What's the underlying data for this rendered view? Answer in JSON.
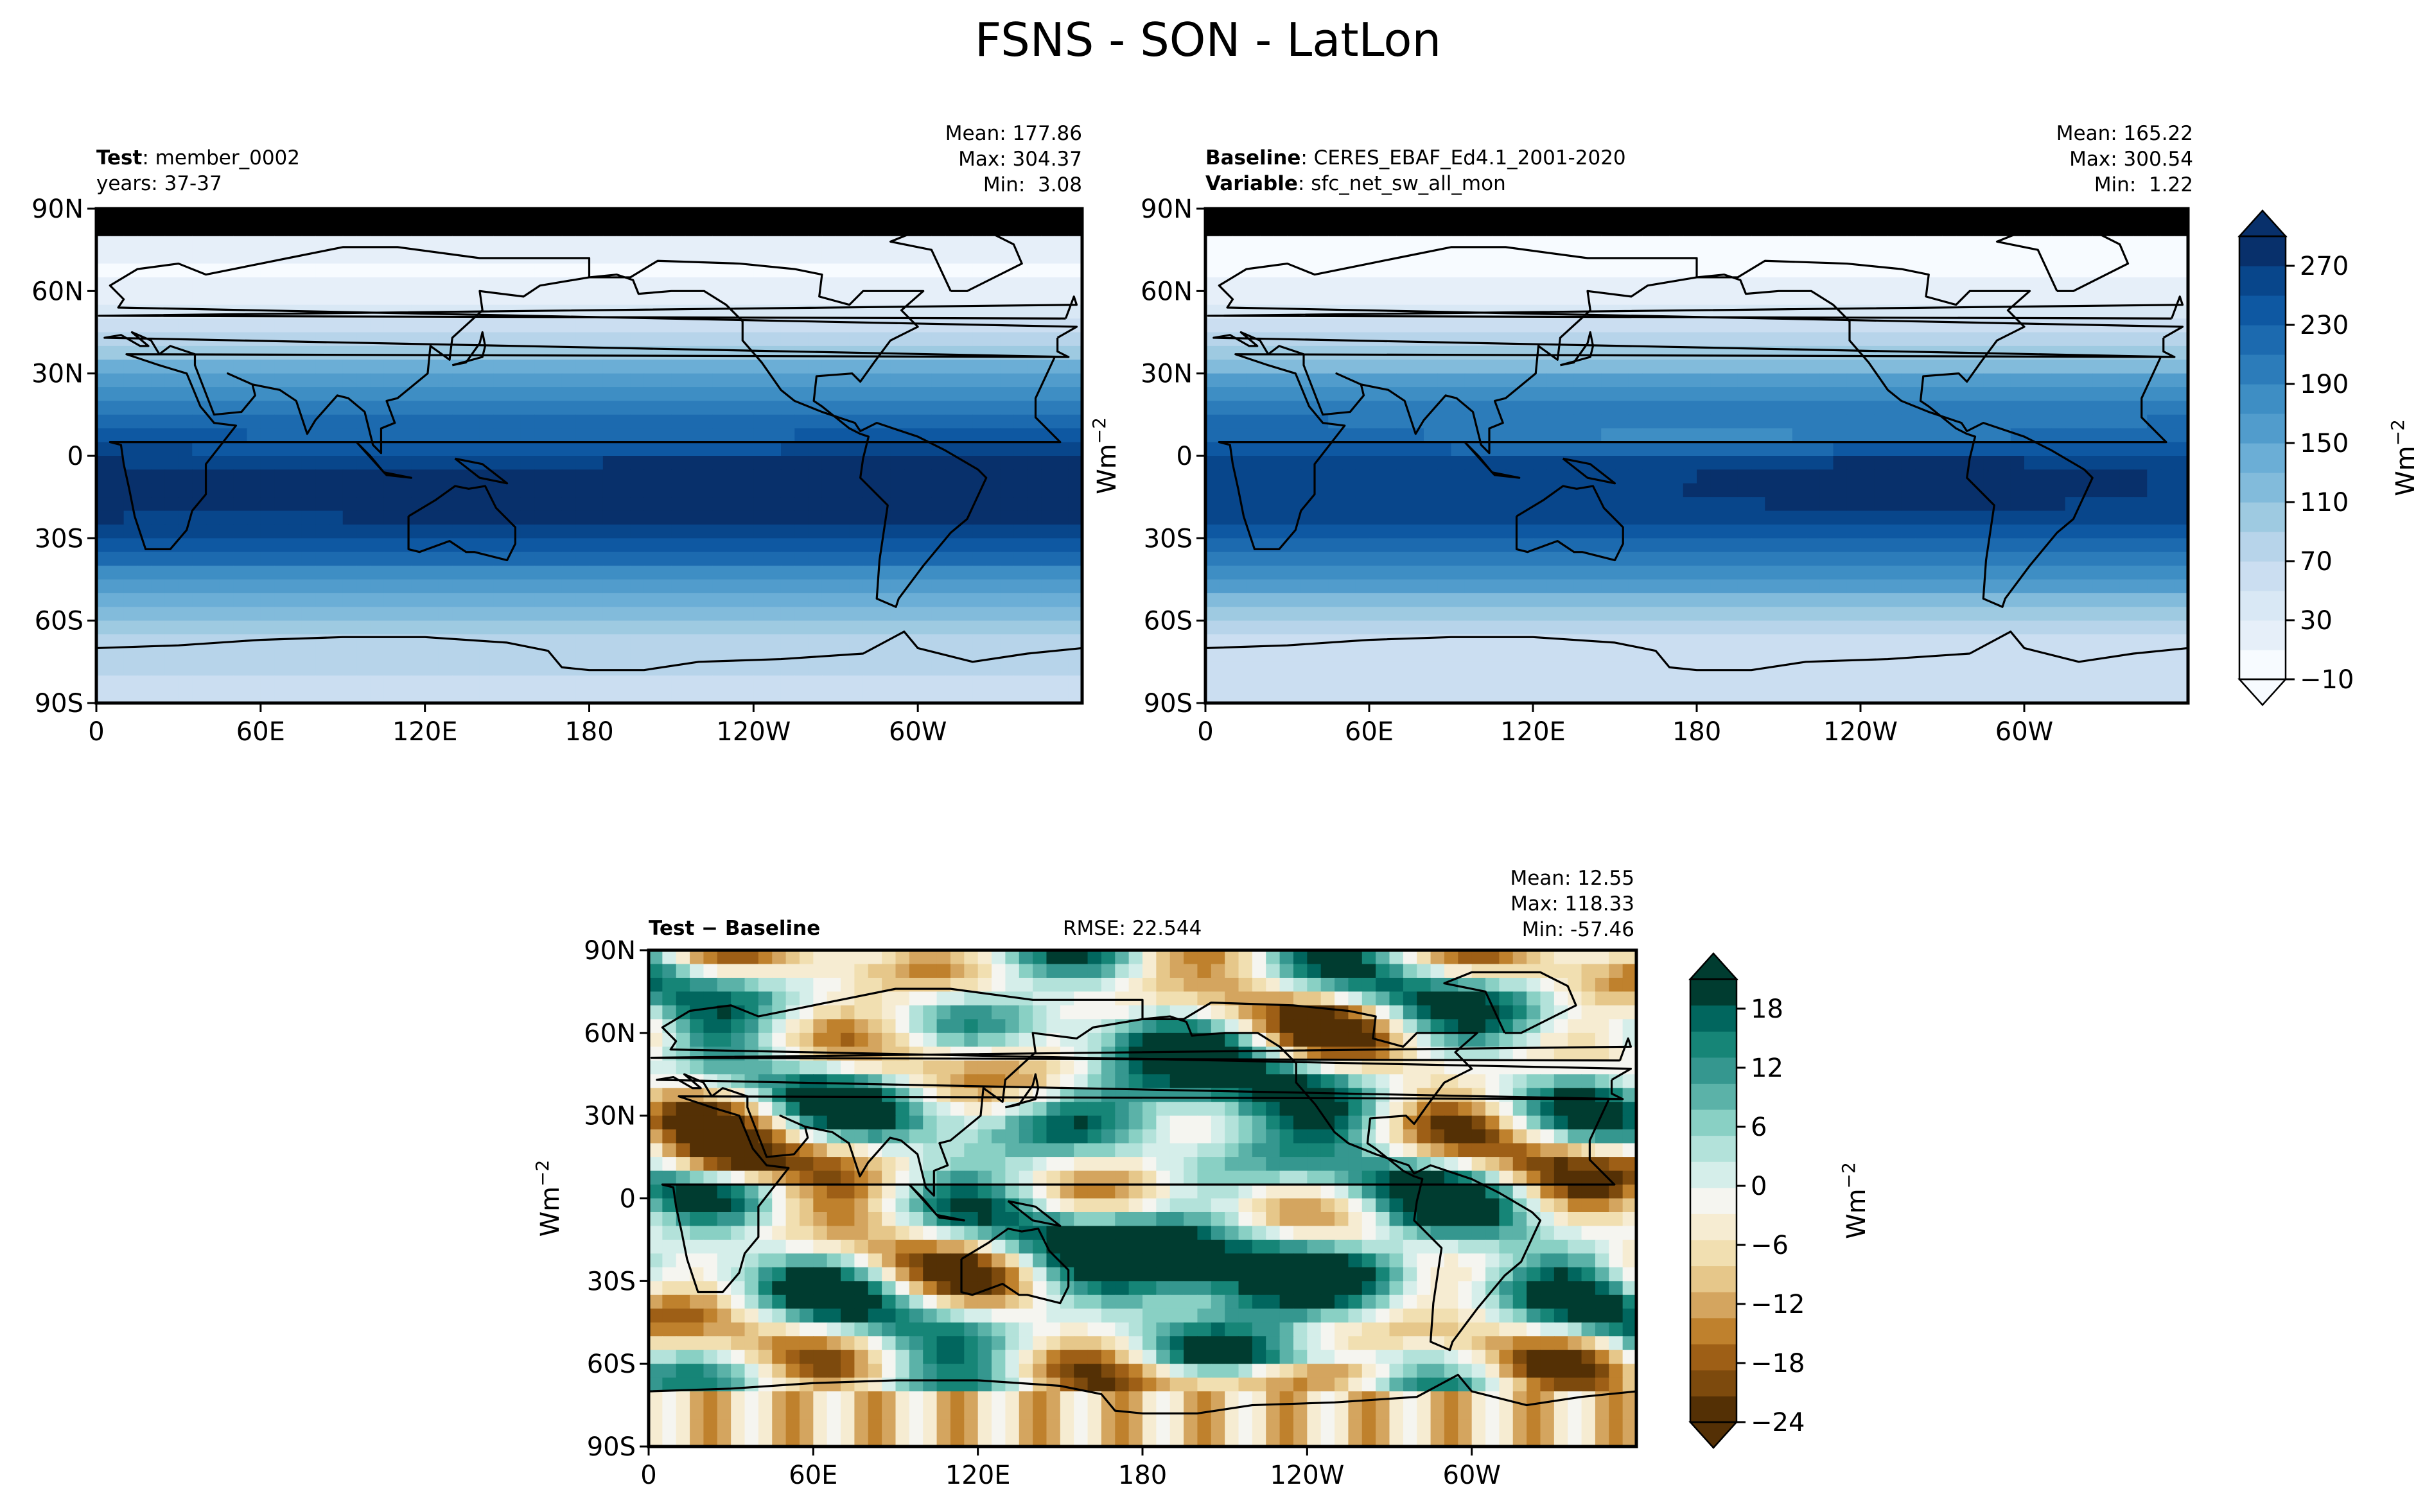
{
  "title": "FSNS - SON - LatLon",
  "colors": {
    "blues": [
      "#f7fbff",
      "#e6eff9",
      "#d9e8f5",
      "#cbdef1",
      "#b7d4ea",
      "#9ecae1",
      "#82bbdb",
      "#6baed6",
      "#519ccc",
      "#3e8ec4",
      "#2c7cba",
      "#1c6aaf",
      "#0e58a2",
      "#08468b",
      "#08306b"
    ],
    "brbg": [
      "#543005",
      "#7d4a0d",
      "#9e5f16",
      "#bf812d",
      "#d4a55f",
      "#e6c78a",
      "#f1dfb1",
      "#f6ecd2",
      "#f5f5f0",
      "#d5eeea",
      "#b3e2da",
      "#89d0c4",
      "#5bb2a8",
      "#35978f",
      "#168577",
      "#01665e",
      "#003c30"
    ]
  },
  "chart_data": [
    {
      "type": "heatmap",
      "panel": "test",
      "left_labels": [
        {
          "bold": "Test",
          "text": ": member_0002"
        },
        {
          "bold": "",
          "text": "years: 37-37"
        }
      ],
      "stats": {
        "mean": "Mean: 177.86",
        "max": "Max: 304.37",
        "min": "Min:  3.08"
      },
      "x_ticks": [
        "0",
        "60E",
        "120E",
        "180",
        "120W",
        "60W"
      ],
      "y_ticks": [
        "90N",
        "60N",
        "30N",
        "0",
        "30S",
        "60S",
        "90S"
      ],
      "field": {
        "mean": 177.86,
        "max": 304.37,
        "min": 3.08
      }
    },
    {
      "type": "heatmap",
      "panel": "baseline",
      "left_labels": [
        {
          "bold": "Baseline",
          "text": ": CERES_EBAF_Ed4.1_2001-2020"
        },
        {
          "bold": "Variable",
          "text": ": sfc_net_sw_all_mon"
        }
      ],
      "stats": {
        "mean": "Mean: 165.22",
        "max": "Max: 300.54",
        "min": "Min:  1.22"
      },
      "x_ticks": [
        "0",
        "60E",
        "120E",
        "180",
        "120W",
        "60W"
      ],
      "y_ticks": [
        "90N",
        "60N",
        "30N",
        "0",
        "30S",
        "60S",
        "90S"
      ],
      "ylabel_html": "Wm",
      "ylabel_sup": "−2",
      "field": {
        "mean": 165.22,
        "max": 300.54,
        "min": 1.22
      },
      "colorbar": {
        "ticks": [
          "270",
          "230",
          "190",
          "150",
          "110",
          "70",
          "30",
          "−10"
        ],
        "range": [
          -10,
          290
        ],
        "label": "Wm",
        "label_sup": "−2"
      }
    },
    {
      "type": "heatmap",
      "panel": "difference",
      "left_labels": [
        {
          "bold": "Test − Baseline",
          "text": ""
        }
      ],
      "rmse": "RMSE: 22.544",
      "stats": {
        "mean": "Mean: 12.55",
        "max": "Max: 118.33",
        "min": "Min: -57.46"
      },
      "x_ticks": [
        "0",
        "60E",
        "120E",
        "180",
        "120W",
        "60W"
      ],
      "y_ticks": [
        "90N",
        "60N",
        "30N",
        "0",
        "30S",
        "60S",
        "90S"
      ],
      "ylabel_html": "Wm",
      "ylabel_sup": "−2",
      "field": {
        "mean": 12.55,
        "max": 118.33,
        "min": -57.46
      },
      "colorbar": {
        "ticks": [
          "18",
          "12",
          "6",
          "0",
          "−6",
          "−12",
          "−18",
          "−24"
        ],
        "range": [
          -24,
          21
        ],
        "label": "Wm",
        "label_sup": "−2"
      }
    }
  ]
}
